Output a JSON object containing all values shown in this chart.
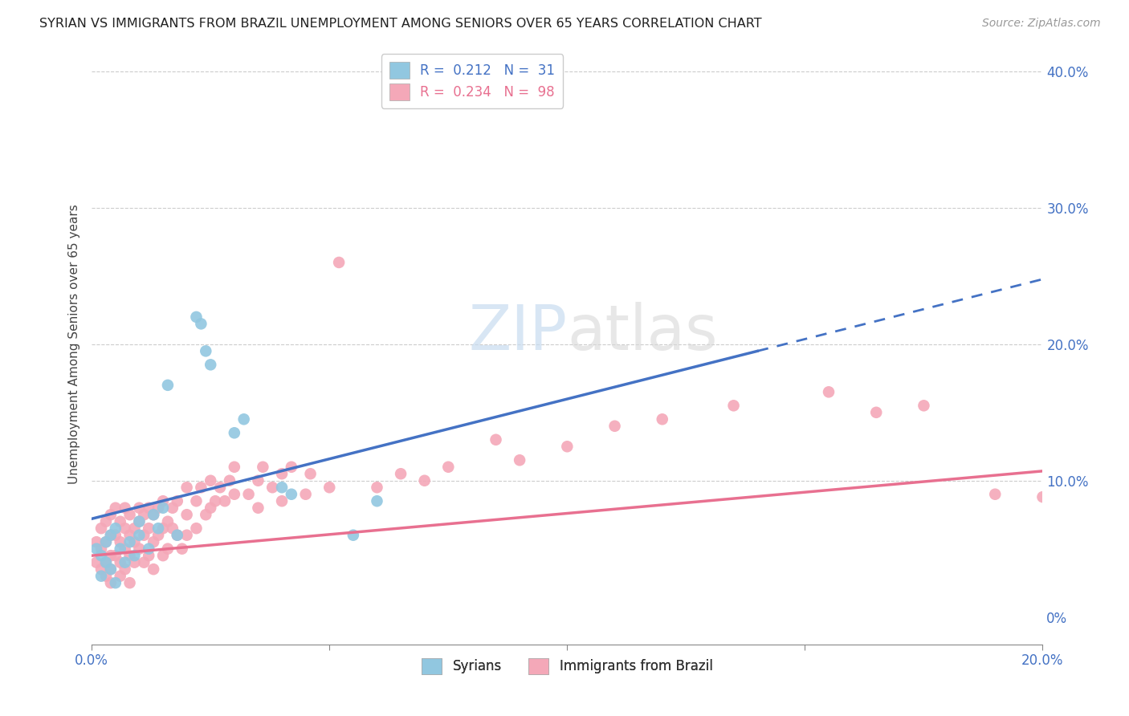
{
  "title": "SYRIAN VS IMMIGRANTS FROM BRAZIL UNEMPLOYMENT AMONG SENIORS OVER 65 YEARS CORRELATION CHART",
  "source": "Source: ZipAtlas.com",
  "ylabel": "Unemployment Among Seniors over 65 years",
  "xmin": 0.0,
  "xmax": 0.2,
  "ymin": -0.02,
  "ymax": 0.42,
  "syrian_color": "#91C7E0",
  "brazil_color": "#F4A8B8",
  "syrian_line_color": "#4472C4",
  "brazil_line_color": "#E87090",
  "legend_r_syrian": "0.212",
  "legend_n_syrian": "31",
  "legend_r_brazil": "0.234",
  "legend_n_brazil": "98",
  "watermark": "ZIPatlas",
  "syrians_x": [
    0.001,
    0.002,
    0.002,
    0.003,
    0.003,
    0.004,
    0.004,
    0.005,
    0.005,
    0.006,
    0.007,
    0.008,
    0.009,
    0.01,
    0.01,
    0.012,
    0.013,
    0.014,
    0.015,
    0.016,
    0.018,
    0.022,
    0.023,
    0.024,
    0.025,
    0.03,
    0.032,
    0.04,
    0.042,
    0.055,
    0.06
  ],
  "syrians_y": [
    0.05,
    0.03,
    0.045,
    0.04,
    0.055,
    0.035,
    0.06,
    0.025,
    0.065,
    0.05,
    0.04,
    0.055,
    0.045,
    0.06,
    0.07,
    0.05,
    0.075,
    0.065,
    0.08,
    0.17,
    0.06,
    0.22,
    0.215,
    0.195,
    0.185,
    0.135,
    0.145,
    0.095,
    0.09,
    0.06,
    0.085
  ],
  "brazil_x": [
    0.001,
    0.001,
    0.002,
    0.002,
    0.002,
    0.003,
    0.003,
    0.003,
    0.003,
    0.004,
    0.004,
    0.004,
    0.004,
    0.004,
    0.005,
    0.005,
    0.005,
    0.006,
    0.006,
    0.006,
    0.006,
    0.007,
    0.007,
    0.007,
    0.007,
    0.008,
    0.008,
    0.008,
    0.008,
    0.009,
    0.009,
    0.009,
    0.01,
    0.01,
    0.01,
    0.011,
    0.011,
    0.011,
    0.012,
    0.012,
    0.012,
    0.013,
    0.013,
    0.013,
    0.014,
    0.014,
    0.015,
    0.015,
    0.015,
    0.016,
    0.016,
    0.017,
    0.017,
    0.018,
    0.018,
    0.019,
    0.02,
    0.02,
    0.02,
    0.022,
    0.022,
    0.023,
    0.024,
    0.025,
    0.025,
    0.026,
    0.027,
    0.028,
    0.029,
    0.03,
    0.03,
    0.033,
    0.035,
    0.035,
    0.036,
    0.038,
    0.04,
    0.04,
    0.042,
    0.045,
    0.046,
    0.05,
    0.052,
    0.06,
    0.065,
    0.07,
    0.075,
    0.085,
    0.09,
    0.1,
    0.11,
    0.12,
    0.135,
    0.155,
    0.165,
    0.175,
    0.19,
    0.2
  ],
  "brazil_y": [
    0.04,
    0.055,
    0.035,
    0.05,
    0.065,
    0.04,
    0.055,
    0.03,
    0.07,
    0.045,
    0.06,
    0.035,
    0.075,
    0.025,
    0.06,
    0.045,
    0.08,
    0.055,
    0.04,
    0.07,
    0.03,
    0.065,
    0.05,
    0.08,
    0.035,
    0.06,
    0.045,
    0.075,
    0.025,
    0.065,
    0.055,
    0.04,
    0.07,
    0.05,
    0.08,
    0.06,
    0.04,
    0.075,
    0.065,
    0.045,
    0.08,
    0.055,
    0.035,
    0.075,
    0.06,
    0.08,
    0.065,
    0.045,
    0.085,
    0.07,
    0.05,
    0.065,
    0.08,
    0.06,
    0.085,
    0.05,
    0.095,
    0.06,
    0.075,
    0.085,
    0.065,
    0.095,
    0.075,
    0.08,
    0.1,
    0.085,
    0.095,
    0.085,
    0.1,
    0.09,
    0.11,
    0.09,
    0.1,
    0.08,
    0.11,
    0.095,
    0.105,
    0.085,
    0.11,
    0.09,
    0.105,
    0.095,
    0.26,
    0.095,
    0.105,
    0.1,
    0.11,
    0.13,
    0.115,
    0.125,
    0.14,
    0.145,
    0.155,
    0.165,
    0.15,
    0.155,
    0.09,
    0.088
  ]
}
